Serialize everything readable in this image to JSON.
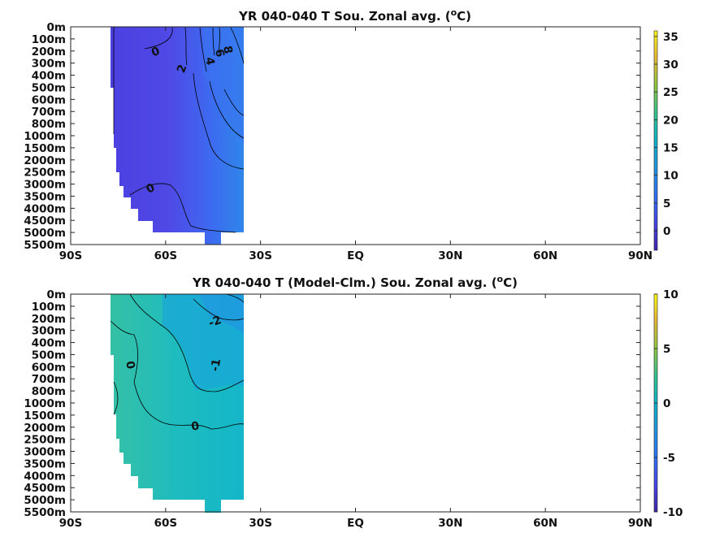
{
  "chart_data": [
    {
      "type": "heatmap",
      "title": "YR 040-040 T Sou. Zonal avg. (",
      "title_superscript": "o",
      "title_unit": "C)",
      "x_ticks": [
        "90S",
        "60S",
        "30S",
        "EQ",
        "30N",
        "60N",
        "90N"
      ],
      "x_tick_values": [
        -90,
        -60,
        -30,
        0,
        30,
        60,
        90
      ],
      "xlim": [
        -90,
        90
      ],
      "y_ticks": [
        "0m",
        "100m",
        "200m",
        "300m",
        "400m",
        "500m",
        "600m",
        "700m",
        "800m",
        "1000m",
        "1500m",
        "2000m",
        "2500m",
        "3000m",
        "3500m",
        "4000m",
        "4500m",
        "5000m",
        "5500m"
      ],
      "colorbar": {
        "ticks": [
          "35",
          "30",
          "25",
          "20",
          "15",
          "10",
          "5",
          "0"
        ],
        "tick_values": [
          35,
          30,
          25,
          20,
          15,
          10,
          5,
          0
        ],
        "range": [
          -3.5,
          36
        ]
      },
      "data_extent_lat": [
        -78,
        -35
      ],
      "contour_labels": [
        "0",
        "2",
        "4",
        "6",
        "8",
        "0"
      ],
      "grid": false
    },
    {
      "type": "heatmap",
      "title": "YR 040-040 T (Model-Clm.) Sou. Zonal avg. (",
      "title_superscript": "o",
      "title_unit": "C)",
      "x_ticks": [
        "90S",
        "60S",
        "30S",
        "EQ",
        "30N",
        "60N",
        "90N"
      ],
      "x_tick_values": [
        -90,
        -60,
        -30,
        0,
        30,
        60,
        90
      ],
      "xlim": [
        -90,
        90
      ],
      "y_ticks": [
        "0m",
        "100m",
        "200m",
        "300m",
        "400m",
        "500m",
        "600m",
        "700m",
        "800m",
        "1000m",
        "1500m",
        "2000m",
        "2500m",
        "3000m",
        "3500m",
        "4000m",
        "4500m",
        "5000m",
        "5500m"
      ],
      "colorbar": {
        "ticks": [
          "10",
          "5",
          "0",
          "-5",
          "-10"
        ],
        "tick_values": [
          10,
          5,
          0,
          -5,
          -10
        ],
        "range": [
          -10,
          10
        ]
      },
      "data_extent_lat": [
        -78,
        -35
      ],
      "contour_labels": [
        "-2",
        "0",
        "-1",
        "0"
      ],
      "grid": false
    }
  ]
}
